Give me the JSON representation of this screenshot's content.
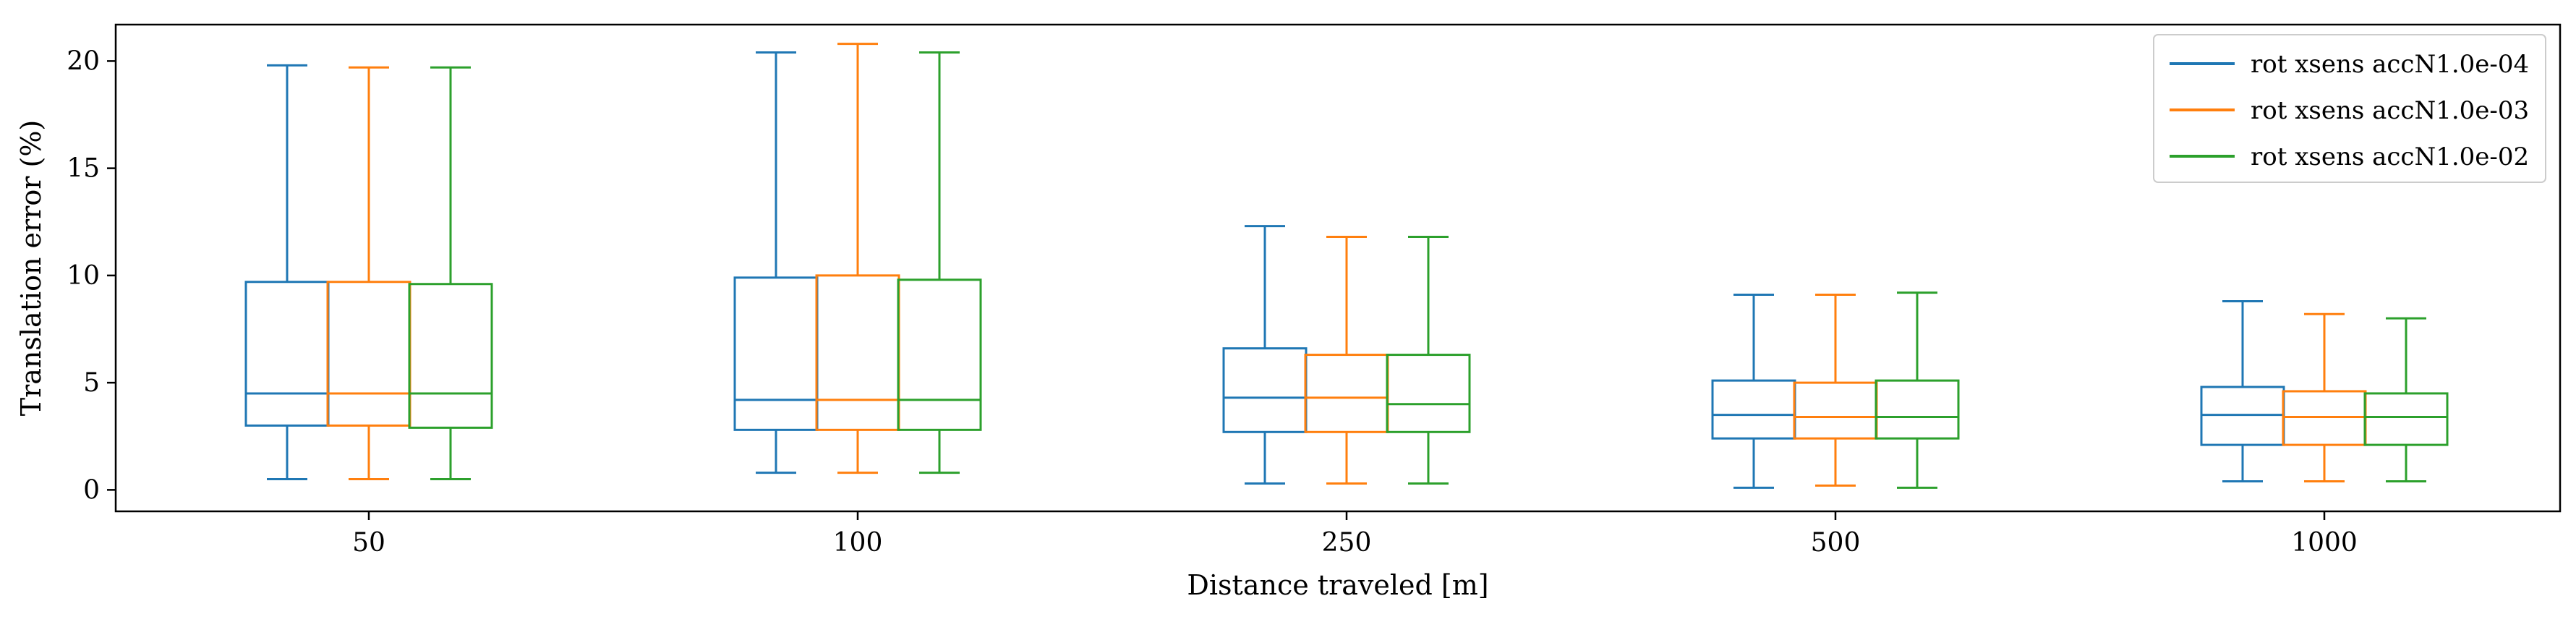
{
  "chart_data": {
    "type": "boxplot",
    "title": "",
    "xlabel": "Distance traveled [m]",
    "ylabel": "Translation error (%)",
    "categories": [
      "50",
      "100",
      "250",
      "500",
      "1000"
    ],
    "ylim": [
      -1,
      21.7
    ],
    "yticks": [
      0,
      5,
      10,
      15,
      20
    ],
    "grid": false,
    "legend_position": "top-right",
    "series": [
      {
        "name": "rot xsens accN1.0e-04",
        "color": "#1f77b4",
        "boxes": [
          {
            "whislo": 0.5,
            "q1": 3.0,
            "med": 4.5,
            "q3": 9.7,
            "whishi": 19.8
          },
          {
            "whislo": 0.8,
            "q1": 2.8,
            "med": 4.2,
            "q3": 9.9,
            "whishi": 20.4
          },
          {
            "whislo": 0.3,
            "q1": 2.7,
            "med": 4.3,
            "q3": 6.6,
            "whishi": 12.3
          },
          {
            "whislo": 0.1,
            "q1": 2.4,
            "med": 3.5,
            "q3": 5.1,
            "whishi": 9.1
          },
          {
            "whislo": 0.4,
            "q1": 2.1,
            "med": 3.5,
            "q3": 4.8,
            "whishi": 8.8
          }
        ]
      },
      {
        "name": "rot xsens accN1.0e-03",
        "color": "#ff7f0e",
        "boxes": [
          {
            "whislo": 0.5,
            "q1": 3.0,
            "med": 4.5,
            "q3": 9.7,
            "whishi": 19.7
          },
          {
            "whislo": 0.8,
            "q1": 2.8,
            "med": 4.2,
            "q3": 10.0,
            "whishi": 20.8
          },
          {
            "whislo": 0.3,
            "q1": 2.7,
            "med": 4.3,
            "q3": 6.3,
            "whishi": 11.8
          },
          {
            "whislo": 0.2,
            "q1": 2.4,
            "med": 3.4,
            "q3": 5.0,
            "whishi": 9.1
          },
          {
            "whislo": 0.4,
            "q1": 2.1,
            "med": 3.4,
            "q3": 4.6,
            "whishi": 8.2
          }
        ]
      },
      {
        "name": "rot xsens accN1.0e-02",
        "color": "#2ca02c",
        "boxes": [
          {
            "whislo": 0.5,
            "q1": 2.9,
            "med": 4.5,
            "q3": 9.6,
            "whishi": 19.7
          },
          {
            "whislo": 0.8,
            "q1": 2.8,
            "med": 4.2,
            "q3": 9.8,
            "whishi": 20.4
          },
          {
            "whislo": 0.3,
            "q1": 2.7,
            "med": 4.0,
            "q3": 6.3,
            "whishi": 11.8
          },
          {
            "whislo": 0.1,
            "q1": 2.4,
            "med": 3.4,
            "q3": 5.1,
            "whishi": 9.2
          },
          {
            "whislo": 0.4,
            "q1": 2.1,
            "med": 3.4,
            "q3": 4.5,
            "whishi": 8.0
          }
        ]
      }
    ]
  }
}
